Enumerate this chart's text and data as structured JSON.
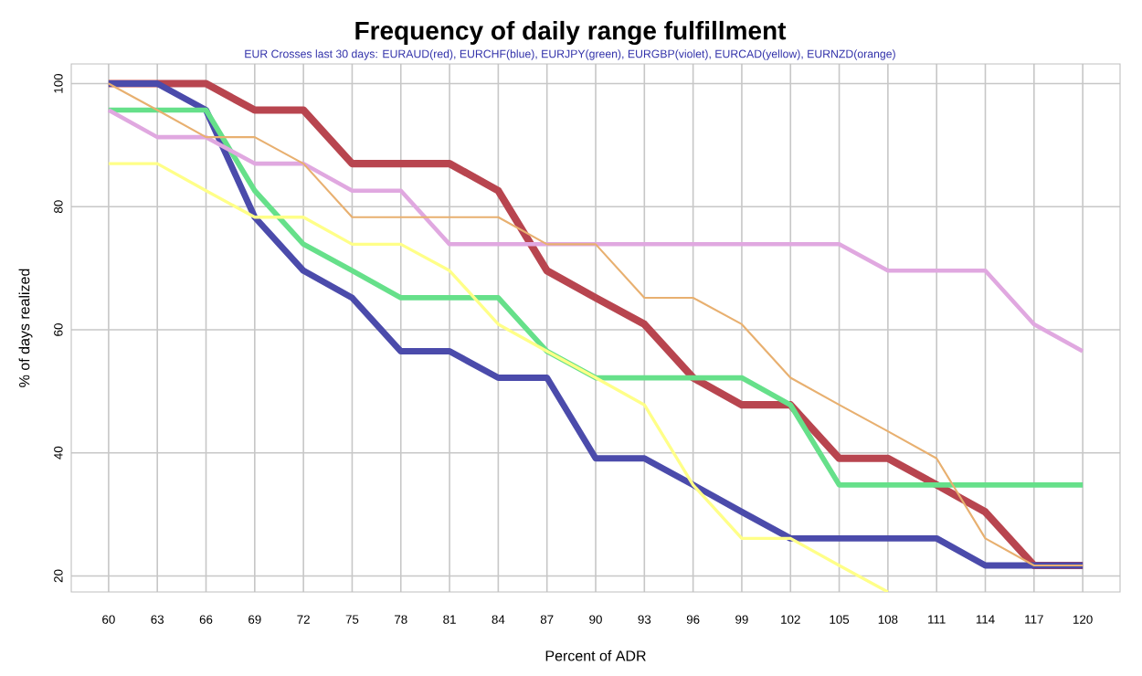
{
  "chart_data": {
    "type": "line",
    "title": "Frequency of daily range fulfillment",
    "subtitle": "EUR Crosses last 30 days: EURAUD(red), EURCHF(blue), EURJPY(green), EURGBP(violet), EURCAD(yellow), EURNZD(orange)",
    "xlabel": "Percent of ADR",
    "ylabel": "% of days realized",
    "x": [
      60,
      63,
      66,
      69,
      72,
      75,
      78,
      81,
      84,
      87,
      90,
      93,
      96,
      99,
      102,
      105,
      108,
      111,
      114,
      117,
      120
    ],
    "series": [
      {
        "color": "#b8454f",
        "values": [
          100,
          100,
          100,
          95.7,
          95.7,
          87.0,
          87.0,
          87.0,
          82.6,
          69.6,
          65.2,
          60.9,
          52.2,
          47.8,
          47.8,
          39.1,
          39.1,
          34.8,
          30.4,
          21.7,
          21.7
        ]
      },
      {
        "color": "#4b4bab",
        "values": [
          100,
          100,
          95.7,
          78.3,
          69.6,
          65.2,
          56.5,
          56.5,
          52.2,
          52.2,
          39.1,
          39.1,
          34.8,
          30.4,
          26.1,
          26.1,
          26.1,
          26.1,
          21.7,
          21.7,
          21.7
        ]
      },
      {
        "color": "#66e08a",
        "values": [
          95.7,
          95.7,
          95.7,
          82.6,
          73.9,
          69.6,
          65.2,
          65.2,
          65.2,
          56.5,
          52.2,
          52.2,
          52.2,
          52.2,
          47.8,
          34.8,
          34.8,
          34.8,
          34.8,
          34.8,
          34.8
        ]
      },
      {
        "color": "#e0a8e0",
        "values": [
          95.7,
          91.3,
          91.3,
          87.0,
          87.0,
          82.6,
          82.6,
          73.9,
          73.9,
          73.9,
          73.9,
          73.9,
          73.9,
          73.9,
          73.9,
          73.9,
          69.6,
          69.6,
          69.6,
          60.9,
          56.5
        ]
      },
      {
        "color": "#ffff88",
        "values": [
          87.0,
          87.0,
          82.6,
          78.3,
          78.3,
          73.9,
          73.9,
          69.6,
          60.9,
          56.5,
          52.2,
          47.8,
          34.8,
          26.1,
          26.1,
          21.7,
          17.4,
          null,
          null,
          null,
          null
        ]
      },
      {
        "color": "#e8b070",
        "values": [
          100,
          95.7,
          91.3,
          91.3,
          87.0,
          78.3,
          78.3,
          78.3,
          78.3,
          73.9,
          73.9,
          65.2,
          65.2,
          60.9,
          52.2,
          47.8,
          43.5,
          39.1,
          26.1,
          21.7,
          21.7
        ]
      }
    ],
    "xlim": [
      57.7,
      122.3
    ],
    "ylim": [
      17.4,
      103.2
    ],
    "xticks": [
      60,
      63,
      66,
      69,
      72,
      75,
      78,
      81,
      84,
      87,
      90,
      93,
      96,
      99,
      102,
      105,
      108,
      111,
      114,
      117,
      120
    ],
    "yticks": [
      20,
      40,
      60,
      80,
      100
    ],
    "grid": true,
    "line_style": "solid",
    "marker": "none"
  }
}
